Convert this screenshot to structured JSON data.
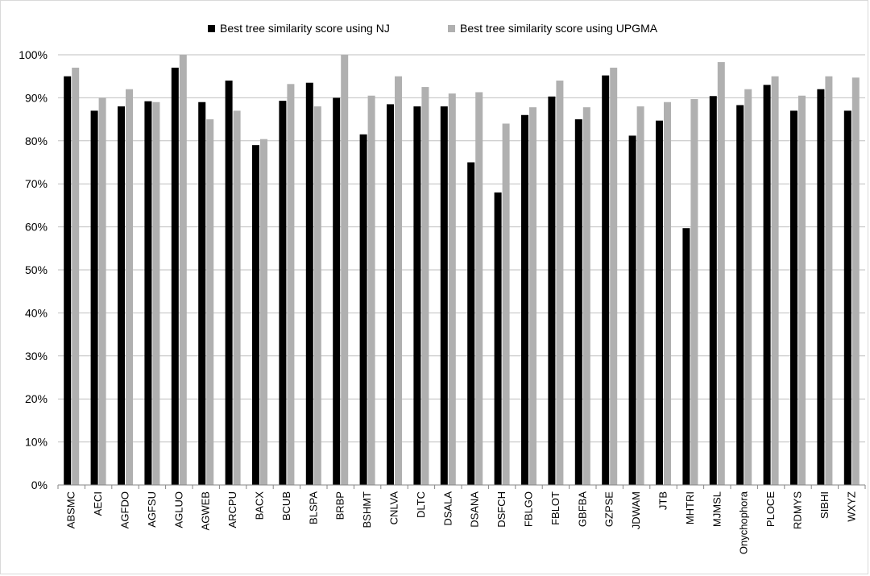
{
  "chart_data": {
    "type": "bar",
    "title": "",
    "xlabel": "",
    "ylabel": "",
    "ylim": [
      0,
      100
    ],
    "y_tick_values": [
      0,
      10,
      20,
      30,
      40,
      50,
      60,
      70,
      80,
      90,
      100
    ],
    "y_tick_labels": [
      "0%",
      "10%",
      "20%",
      "30%",
      "40%",
      "50%",
      "60%",
      "70%",
      "80%",
      "90%",
      "100%"
    ],
    "grid": true,
    "legend_position": "top",
    "categories": [
      "ABSMC",
      "AECI",
      "AGFDO",
      "AGFSU",
      "AGLUO",
      "AGWEB",
      "ARCPU",
      "BACX",
      "BCUB",
      "BLSPA",
      "BRBP",
      "BSHMT",
      "CNLVA",
      "DLTC",
      "DSALA",
      "DSANA",
      "DSFCH",
      "FBLGO",
      "FBLOT",
      "GBFBA",
      "GZPSE",
      "JDWAM",
      "JTB",
      "MHTRI",
      "MJMSL",
      "Onychophora",
      "PLOCE",
      "RDMYS",
      "SIBHI",
      "WXYZ"
    ],
    "series": [
      {
        "name": "Best tree similarity score using NJ",
        "color": "#000000",
        "values": [
          95,
          87,
          88,
          89.2,
          97,
          89,
          94,
          79,
          89.3,
          93.5,
          90,
          81.5,
          88.5,
          88,
          88,
          75,
          68,
          86,
          90.3,
          85,
          95.2,
          81.2,
          84.7,
          59.7,
          90.4,
          88.3,
          93,
          87,
          92,
          87
        ]
      },
      {
        "name": "Best tree similarity score using UPGMA",
        "color": "#b0b0b0",
        "values": [
          97,
          90,
          92,
          89,
          100,
          85,
          87,
          80.4,
          93.2,
          88,
          100,
          90.5,
          95,
          92.5,
          91,
          91.3,
          84,
          87.8,
          94,
          87.8,
          97,
          88,
          89,
          89.7,
          98.3,
          92,
          95,
          90.5,
          95,
          94.7
        ]
      }
    ]
  }
}
